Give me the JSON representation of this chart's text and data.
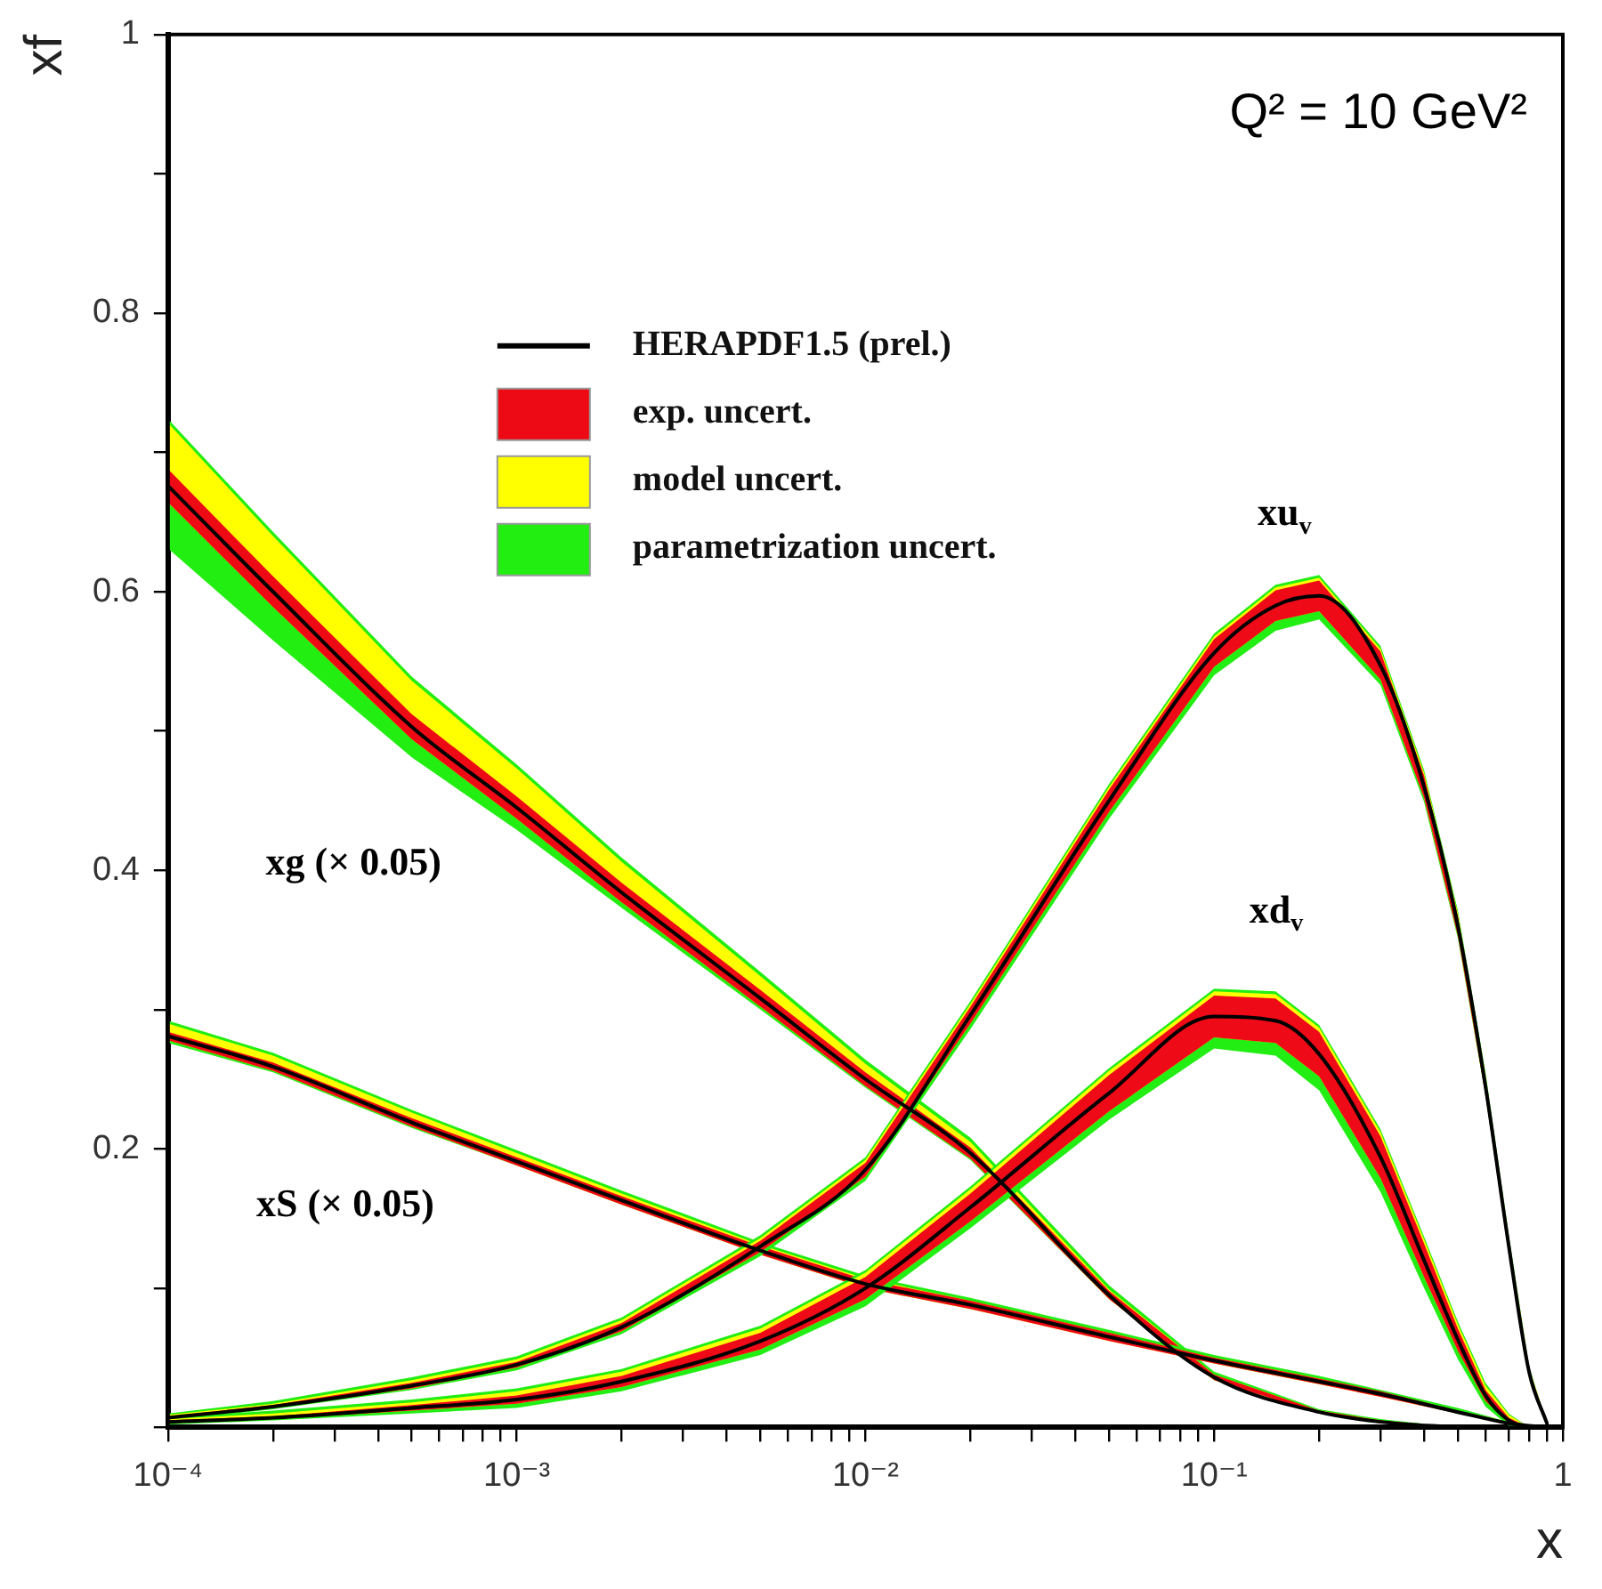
{
  "chart_data": {
    "type": "line",
    "xlabel": "x",
    "ylabel": "xf",
    "log": "x",
    "grid": false,
    "legend": "top left",
    "marker": "none",
    "line_style": "solid",
    "xlim": [
      0.0001,
      1
    ],
    "ylim": [
      0,
      1
    ],
    "xticks": [
      {
        "value": 0.0001,
        "label": "10⁻⁴"
      },
      {
        "value": 0.0002,
        "label": null
      },
      {
        "value": 0.0003,
        "label": null
      },
      {
        "value": 0.0004,
        "label": null
      },
      {
        "value": 0.0005,
        "label": null
      },
      {
        "value": 0.0006,
        "label": null
      },
      {
        "value": 0.0007,
        "label": null
      },
      {
        "value": 0.0008,
        "label": null
      },
      {
        "value": 0.0009,
        "label": null
      },
      {
        "value": 0.001,
        "label": "10⁻³"
      },
      {
        "value": 0.002,
        "label": null
      },
      {
        "value": 0.003,
        "label": null
      },
      {
        "value": 0.004,
        "label": null
      },
      {
        "value": 0.005,
        "label": null
      },
      {
        "value": 0.006,
        "label": null
      },
      {
        "value": 0.007,
        "label": null
      },
      {
        "value": 0.008,
        "label": null
      },
      {
        "value": 0.009,
        "label": null
      },
      {
        "value": 0.01,
        "label": "10⁻²"
      },
      {
        "value": 0.02,
        "label": null
      },
      {
        "value": 0.03,
        "label": null
      },
      {
        "value": 0.04,
        "label": null
      },
      {
        "value": 0.05,
        "label": null
      },
      {
        "value": 0.06,
        "label": null
      },
      {
        "value": 0.07,
        "label": null
      },
      {
        "value": 0.08,
        "label": null
      },
      {
        "value": 0.09,
        "label": null
      },
      {
        "value": 0.1,
        "label": "10⁻¹"
      },
      {
        "value": 0.2,
        "label": null
      },
      {
        "value": 0.3,
        "label": null
      },
      {
        "value": 0.4,
        "label": null
      },
      {
        "value": 0.5,
        "label": null
      },
      {
        "value": 0.6,
        "label": null
      },
      {
        "value": 0.7,
        "label": null
      },
      {
        "value": 0.8,
        "label": null
      },
      {
        "value": 0.9,
        "label": null
      },
      1
    ],
    "yticks": [
      {
        "value": 0,
        "label": null
      },
      {
        "value": 0.1,
        "label": null
      },
      0.2,
      {
        "value": 0.3,
        "label": null
      },
      0.4,
      {
        "value": 0.5,
        "label": null
      },
      0.6,
      {
        "value": 0.7,
        "label": null
      },
      0.8,
      {
        "value": 0.9,
        "label": null
      },
      1.0
    ],
    "annotations": [
      "Q² = 10 GeV²",
      "xg (× 0.05)",
      "xS (× 0.05)",
      "xu$_{v}$",
      "xd$_{v}$"
    ],
    "series": [
      {
        "type": "line",
        "name": "parametrization uncert.",
        "color": "#22ee11",
        "x": [
          0.0001,
          0.0002,
          0.0005,
          0.001,
          0.002,
          0.005,
          0.01,
          0.02,
          0.05,
          0.1,
          0.2,
          0.3,
          0.5
        ],
        "values": [
          null,
          null,
          null,
          null,
          null,
          null,
          null,
          null,
          null,
          null,
          null,
          null,
          null
        ],
        "lower": [
          0.631,
          0.565,
          0.481,
          0.429,
          0.373,
          0.3,
          0.244,
          0.192,
          0.092,
          0.034,
          0.01,
          0.003,
          0
        ],
        "upper": [
          0.724,
          0.643,
          0.539,
          0.476,
          0.409,
          0.327,
          0.264,
          0.208,
          0.102,
          0.04,
          0.013,
          0.006,
          0
        ]
      },
      {
        "type": "line",
        "name": "model uncert.",
        "color": "#ffff00",
        "x": [
          0.0001,
          0.0002,
          0.0005,
          0.001,
          0.002,
          0.005,
          0.01,
          0.02,
          0.05,
          0.1,
          0.2,
          0.3,
          0.5
        ],
        "values": [
          null,
          null,
          null,
          null,
          null,
          null,
          null,
          null,
          null,
          null,
          null,
          null,
          null
        ],
        "lower": [
          0.664,
          0.589,
          0.494,
          0.437,
          0.377,
          0.302,
          0.245,
          0.193,
          0.092,
          0.034,
          0.01,
          0.003,
          0
        ],
        "upper": [
          0.721,
          0.64,
          0.536,
          0.473,
          0.406,
          0.324,
          0.261,
          0.205,
          0.099,
          0.038,
          0.012,
          0.005,
          0
        ]
      },
      {
        "type": "line",
        "name": "exp. uncert.",
        "color": "#ee0a14",
        "x": [
          0.0001,
          0.0002,
          0.0005,
          0.001,
          0.002,
          0.005,
          0.01,
          0.02,
          0.05,
          0.1,
          0.2,
          0.3,
          0.5
        ],
        "values": [
          null,
          null,
          null,
          null,
          null,
          null,
          null,
          null,
          null,
          null,
          null,
          null,
          null
        ],
        "lower": [
          0.664,
          0.589,
          0.494,
          0.437,
          0.377,
          0.302,
          0.245,
          0.193,
          0.092,
          0.034,
          0.01,
          0.003,
          0
        ],
        "upper": [
          0.688,
          0.611,
          0.512,
          0.453,
          0.391,
          0.314,
          0.255,
          0.201,
          0.098,
          0.038,
          0.012,
          0.005,
          0
        ]
      },
      {
        "type": "line",
        "name": "HERAPDF1.5 (prel.)",
        "color": "#000000",
        "x": [
          0.0001,
          0.0002,
          0.0005,
          0.001,
          0.002,
          0.005,
          0.01,
          0.02,
          0.05,
          0.1,
          0.2,
          0.3,
          0.5
        ],
        "values": [
          0.676,
          0.6,
          0.503,
          0.445,
          0.384,
          0.308,
          0.25,
          0.197,
          0.095,
          0.036,
          0.011,
          0.004,
          0
        ]
      },
      {
        "type": "line",
        "color": "#22ee12",
        "x": [
          0.0001,
          0.0002,
          0.0005,
          0.001,
          0.002,
          0.005,
          0.01,
          0.02,
          0.05,
          0.1,
          0.2,
          0.3,
          0.5,
          0.7,
          0.9
        ],
        "values": [
          null,
          null,
          null,
          null,
          null,
          null,
          null,
          null,
          null,
          null,
          null,
          null,
          null,
          null,
          null
        ],
        "lower": [
          0.276,
          0.255,
          0.215,
          0.188,
          0.16,
          0.124,
          0.1,
          0.085,
          0.063,
          0.046,
          0.031,
          0.023,
          0.01,
          0.003,
          0
        ],
        "upper": [
          0.292,
          0.269,
          0.228,
          0.199,
          0.17,
          0.133,
          0.109,
          0.093,
          0.07,
          0.052,
          0.037,
          0.027,
          0.014,
          0.004,
          0
        ]
      },
      {
        "type": "line",
        "color": "#ffff01",
        "x": [
          0.0001,
          0.0002,
          0.0005,
          0.001,
          0.002,
          0.005,
          0.01,
          0.02,
          0.05,
          0.1,
          0.2,
          0.3,
          0.5,
          0.7,
          0.9
        ],
        "values": [
          null,
          null,
          null,
          null,
          null,
          null,
          null,
          null,
          null,
          null,
          null,
          null,
          null,
          null,
          null
        ],
        "lower": [
          0.278,
          0.256,
          0.216,
          0.188,
          0.16,
          0.124,
          0.1,
          0.085,
          0.062,
          0.046,
          0.031,
          0.022,
          0.01,
          0.002,
          0
        ],
        "upper": [
          0.29,
          0.267,
          0.226,
          0.197,
          0.168,
          0.131,
          0.107,
          0.091,
          0.068,
          0.05,
          0.035,
          0.025,
          0.012,
          0.003,
          0
        ]
      },
      {
        "type": "line",
        "color": "#ee0a15",
        "x": [
          0.0001,
          0.0002,
          0.0005,
          0.001,
          0.002,
          0.005,
          0.01,
          0.02,
          0.05,
          0.1,
          0.2,
          0.3,
          0.5,
          0.7,
          0.9
        ],
        "values": [
          null,
          null,
          null,
          null,
          null,
          null,
          null,
          null,
          null,
          null,
          null,
          null,
          null,
          null,
          null
        ],
        "lower": [
          0.278,
          0.256,
          0.216,
          0.188,
          0.16,
          0.124,
          0.1,
          0.085,
          0.062,
          0.046,
          0.031,
          0.022,
          0.01,
          0.002,
          0
        ],
        "upper": [
          0.284,
          0.262,
          0.222,
          0.194,
          0.166,
          0.13,
          0.106,
          0.091,
          0.068,
          0.05,
          0.035,
          0.026,
          0.012,
          0.004,
          0
        ]
      },
      {
        "type": "line",
        "color": "#000000",
        "x": [
          0.0001,
          0.0002,
          0.0005,
          0.001,
          0.002,
          0.005,
          0.01,
          0.02,
          0.05,
          0.1,
          0.2,
          0.3,
          0.5,
          0.7,
          0.9
        ],
        "values": [
          0.281,
          0.259,
          0.219,
          0.191,
          0.163,
          0.127,
          0.103,
          0.088,
          0.065,
          0.048,
          0.033,
          0.024,
          0.011,
          0.003,
          0
        ]
      },
      {
        "type": "line",
        "color": "#22ee13",
        "x": [
          0.0001,
          0.0002,
          0.0005,
          0.001,
          0.002,
          0.005,
          0.01,
          0.02,
          0.05,
          0.1,
          0.15,
          0.2,
          0.3,
          0.4,
          0.5,
          0.6,
          0.7,
          0.8,
          0.9
        ],
        "values": [
          null,
          null,
          null,
          null,
          null,
          null,
          null,
          null,
          null,
          null,
          null,
          null,
          null,
          null,
          null,
          null,
          null,
          null,
          null
        ],
        "lower": [
          0.005,
          0.013,
          0.027,
          0.041,
          0.067,
          0.123,
          0.177,
          0.286,
          0.437,
          0.54,
          0.572,
          0.58,
          0.533,
          0.449,
          0.351,
          0.238,
          0.125,
          0.038,
          0.003
        ],
        "upper": [
          0.01,
          0.019,
          0.036,
          0.051,
          0.079,
          0.138,
          0.194,
          0.306,
          0.462,
          0.57,
          0.605,
          0.612,
          0.561,
          0.472,
          0.371,
          0.255,
          0.138,
          0.044,
          0.003
        ]
      },
      {
        "type": "line",
        "color": "#ffff02",
        "x": [
          0.0001,
          0.0002,
          0.0005,
          0.001,
          0.002,
          0.005,
          0.01,
          0.02,
          0.05,
          0.1,
          0.15,
          0.2,
          0.3,
          0.4,
          0.5,
          0.6,
          0.7,
          0.8,
          0.9
        ],
        "values": [
          null,
          null,
          null,
          null,
          null,
          null,
          null,
          null,
          null,
          null,
          null,
          null,
          null,
          null,
          null,
          null,
          null,
          null,
          null
        ],
        "lower": [
          0.006,
          0.014,
          0.028,
          0.043,
          0.069,
          0.126,
          0.18,
          0.29,
          0.442,
          0.546,
          0.579,
          0.586,
          0.537,
          0.452,
          0.353,
          0.239,
          0.126,
          0.038,
          0.003
        ],
        "upper": [
          0.009,
          0.017,
          0.034,
          0.049,
          0.077,
          0.136,
          0.192,
          0.304,
          0.46,
          0.568,
          0.603,
          0.61,
          0.559,
          0.47,
          0.369,
          0.253,
          0.136,
          0.043,
          0.003
        ]
      },
      {
        "type": "line",
        "color": "#ee0a16",
        "x": [
          0.0001,
          0.0002,
          0.0005,
          0.001,
          0.002,
          0.005,
          0.01,
          0.02,
          0.05,
          0.1,
          0.15,
          0.2,
          0.3,
          0.4,
          0.5,
          0.6,
          0.7,
          0.8,
          0.9
        ],
        "values": [
          null,
          null,
          null,
          null,
          null,
          null,
          null,
          null,
          null,
          null,
          null,
          null,
          null,
          null,
          null,
          null,
          null,
          null,
          null
        ],
        "lower": [
          0.006,
          0.014,
          0.028,
          0.043,
          0.069,
          0.126,
          0.18,
          0.29,
          0.442,
          0.546,
          0.579,
          0.586,
          0.537,
          0.452,
          0.353,
          0.239,
          0.126,
          0.038,
          0.003
        ],
        "upper": [
          0.008,
          0.016,
          0.032,
          0.047,
          0.075,
          0.134,
          0.19,
          0.302,
          0.458,
          0.566,
          0.601,
          0.608,
          0.557,
          0.468,
          0.367,
          0.251,
          0.134,
          0.042,
          0.003
        ]
      },
      {
        "type": "line",
        "color": "#000000",
        "x": [
          0.0001,
          0.0002,
          0.0005,
          0.001,
          0.002,
          0.005,
          0.01,
          0.02,
          0.05,
          0.1,
          0.15,
          0.2,
          0.3,
          0.4,
          0.5,
          0.6,
          0.7,
          0.8,
          0.9
        ],
        "values": [
          0.007,
          0.015,
          0.03,
          0.045,
          0.072,
          0.13,
          0.185,
          0.296,
          0.45,
          0.556,
          0.59,
          0.597,
          0.547,
          0.46,
          0.36,
          0.245,
          0.13,
          0.04,
          0.003
        ]
      },
      {
        "type": "line",
        "color": "#22ee14",
        "x": [
          0.0001,
          0.0002,
          0.0005,
          0.001,
          0.002,
          0.005,
          0.01,
          0.02,
          0.05,
          0.1,
          0.15,
          0.2,
          0.3,
          0.4,
          0.5,
          0.6,
          0.7,
          0.8
        ],
        "values": [
          null,
          null,
          null,
          null,
          null,
          null,
          null,
          null,
          null,
          null,
          null,
          null,
          null,
          null,
          null,
          null,
          null,
          null
        ],
        "lower": [
          0.002,
          0.005,
          0.01,
          0.014,
          0.026,
          0.052,
          0.087,
          0.143,
          0.221,
          0.272,
          0.267,
          0.242,
          0.169,
          0.1,
          0.049,
          0.015,
          0.001,
          0
        ],
        "upper": [
          0.007,
          0.012,
          0.02,
          0.028,
          0.042,
          0.073,
          0.113,
          0.173,
          0.258,
          0.315,
          0.313,
          0.289,
          0.214,
          0.137,
          0.076,
          0.032,
          0.01,
          0
        ]
      },
      {
        "type": "line",
        "color": "#ffff03",
        "x": [
          0.0001,
          0.0002,
          0.0005,
          0.001,
          0.002,
          0.005,
          0.01,
          0.02,
          0.05,
          0.1,
          0.15,
          0.2,
          0.3,
          0.4,
          0.5,
          0.6,
          0.7,
          0.8
        ],
        "values": [
          null,
          null,
          null,
          null,
          null,
          null,
          null,
          null,
          null,
          null,
          null,
          null,
          null,
          null,
          null,
          null,
          null,
          null
        ],
        "lower": [
          0.003,
          0.006,
          0.012,
          0.017,
          0.029,
          0.056,
          0.092,
          0.148,
          0.227,
          0.28,
          0.276,
          0.252,
          0.179,
          0.108,
          0.055,
          0.019,
          0.003,
          0
        ],
        "upper": [
          0.006,
          0.01,
          0.018,
          0.026,
          0.04,
          0.071,
          0.111,
          0.171,
          0.256,
          0.313,
          0.311,
          0.287,
          0.212,
          0.135,
          0.074,
          0.03,
          0.009,
          0
        ]
      },
      {
        "type": "line",
        "color": "#ee0a17",
        "x": [
          0.0001,
          0.0002,
          0.0005,
          0.001,
          0.002,
          0.005,
          0.01,
          0.02,
          0.05,
          0.1,
          0.15,
          0.2,
          0.3,
          0.4,
          0.5,
          0.6,
          0.7,
          0.8
        ],
        "values": [
          null,
          null,
          null,
          null,
          null,
          null,
          null,
          null,
          null,
          null,
          null,
          null,
          null,
          null,
          null,
          null,
          null,
          null
        ],
        "lower": [
          0.003,
          0.006,
          0.012,
          0.017,
          0.029,
          0.056,
          0.092,
          0.148,
          0.227,
          0.28,
          0.276,
          0.252,
          0.179,
          0.108,
          0.055,
          0.019,
          0.003,
          0
        ],
        "upper": [
          0.005,
          0.008,
          0.016,
          0.023,
          0.037,
          0.068,
          0.108,
          0.168,
          0.253,
          0.31,
          0.308,
          0.284,
          0.209,
          0.132,
          0.071,
          0.027,
          0.007,
          0
        ]
      },
      {
        "type": "line",
        "color": "#000000",
        "x": [
          0.0001,
          0.0002,
          0.0005,
          0.001,
          0.002,
          0.005,
          0.01,
          0.02,
          0.05,
          0.1,
          0.15,
          0.2,
          0.3,
          0.4,
          0.5,
          0.6,
          0.7,
          0.8
        ],
        "values": [
          0.004,
          0.007,
          0.014,
          0.02,
          0.033,
          0.062,
          0.1,
          0.158,
          0.24,
          0.295,
          0.292,
          0.268,
          0.194,
          0.12,
          0.063,
          0.023,
          0.005,
          0
        ]
      }
    ]
  }
}
